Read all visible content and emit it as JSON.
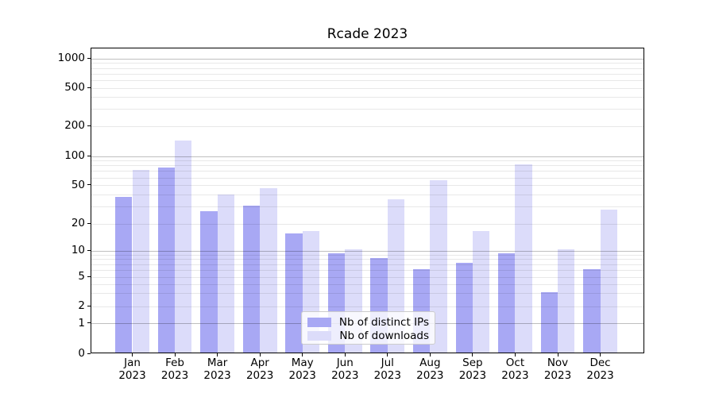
{
  "chart_data": {
    "type": "bar",
    "title": "Rcade 2023",
    "categories": [
      "Jan",
      "Feb",
      "Mar",
      "Apr",
      "May",
      "Jun",
      "Jul",
      "Aug",
      "Sep",
      "Oct",
      "Nov",
      "Dec"
    ],
    "category_year": "2023",
    "series": [
      {
        "name": "Nb of distinct IPs",
        "color": "#a8a8f4",
        "values": [
          37,
          74,
          26,
          30,
          15,
          9,
          8,
          6,
          7,
          9,
          3,
          6
        ]
      },
      {
        "name": "Nb of downloads",
        "color": "#dcdcfa",
        "values": [
          70,
          140,
          39,
          45,
          16,
          10,
          35,
          55,
          16,
          80,
          10,
          27
        ]
      }
    ],
    "xlabel": "",
    "ylabel": "",
    "yscale": "symlog-like (log above 1, compressed linear toward 0)",
    "yticks": [
      0,
      1,
      2,
      5,
      10,
      20,
      50,
      100,
      200,
      500,
      1000
    ],
    "ylim": [
      0,
      1400
    ],
    "grid": true,
    "grid_style": "log minor gridlines light gray, decade lines darker gray, drawn over bars",
    "legend_position": "lower center, inside plot",
    "legend_border_color": "#cccccc",
    "axis_color": "#000000"
  }
}
